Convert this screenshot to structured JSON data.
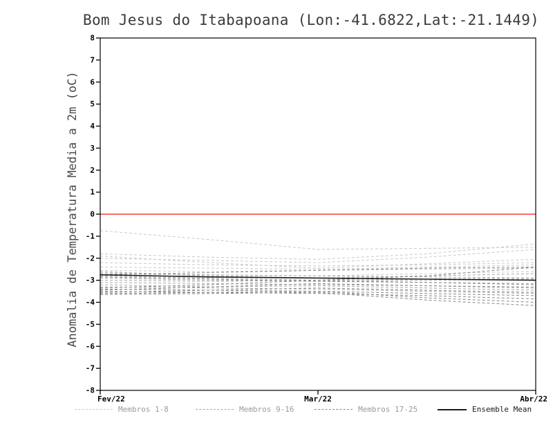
{
  "title": "Bom Jesus do Itabapoana (Lon:-41.6822,Lat:-21.1449)",
  "ylabel": "Anomalia de Temperatura Media a 2m (oC)",
  "legend": [
    {
      "label": "Membros 1-8",
      "color": "#c9c9c9",
      "style": "dashed",
      "label_color": "#9a9a9a"
    },
    {
      "label": "Membros 9-16",
      "color": "#a6a6a6",
      "style": "dashed",
      "label_color": "#9a9a9a"
    },
    {
      "label": "Membros 17-25",
      "color": "#878787",
      "style": "dashed",
      "label_color": "#9a9a9a"
    },
    {
      "label": "Ensemble Mean",
      "color": "#1a1a1a",
      "style": "solid",
      "label_color": "#1a1a1a"
    }
  ],
  "chart_data": {
    "type": "line",
    "title": "Bom Jesus do Itabapoana (Lon:-41.6822,Lat:-21.1449)",
    "xlabel": "",
    "ylabel": "Anomalia de Temperatura Media a 2m (oC)",
    "x_ticks": [
      "Fev/22",
      "Mar/22",
      "Abr/22"
    ],
    "y_ticks": [
      8,
      7,
      6,
      5,
      4,
      3,
      2,
      1,
      0,
      -1,
      -2,
      -3,
      -4,
      -5,
      -6,
      -7,
      -8
    ],
    "ylim": [
      -8,
      8
    ],
    "grid": false,
    "legend_position": "bottom",
    "zero_line": {
      "y": 0,
      "color": "#f04038"
    },
    "series_groups": [
      {
        "name": "Membros 1-8",
        "color": "#c9c9c9",
        "style": "dashed",
        "members": [
          [
            -0.75,
            -1.15,
            -1.6,
            -1.55,
            -1.5
          ],
          [
            -1.8,
            -1.95,
            -2.05,
            -1.8,
            -1.35
          ],
          [
            -2.0,
            -2.1,
            -2.2,
            -1.95,
            -1.6
          ],
          [
            -2.2,
            -2.3,
            -2.35,
            -2.3,
            -2.2
          ],
          [
            -2.4,
            -2.45,
            -2.5,
            -2.4,
            -2.3
          ],
          [
            -2.55,
            -2.6,
            -2.55,
            -2.5,
            -2.45
          ],
          [
            -2.65,
            -2.75,
            -2.8,
            -2.7,
            -2.6
          ],
          [
            -1.9,
            -2.2,
            -2.45,
            -2.25,
            -2.05
          ]
        ]
      },
      {
        "name": "Membros 9-16",
        "color": "#a6a6a6",
        "style": "dashed",
        "members": [
          [
            -2.7,
            -2.75,
            -2.8,
            -2.85,
            -2.9
          ],
          [
            -2.8,
            -2.9,
            -3.0,
            -2.95,
            -2.9
          ],
          [
            -2.9,
            -3.0,
            -3.05,
            -3.0,
            -2.95
          ],
          [
            -3.0,
            -3.05,
            -3.0,
            -3.1,
            -3.15
          ],
          [
            -3.1,
            -3.15,
            -3.2,
            -3.25,
            -3.3
          ],
          [
            -3.2,
            -3.3,
            -3.25,
            -3.35,
            -3.45
          ],
          [
            -3.3,
            -3.35,
            -3.4,
            -3.5,
            -3.6
          ],
          [
            -2.6,
            -2.8,
            -2.9,
            -2.8,
            -2.7
          ]
        ]
      },
      {
        "name": "Membros 17-25",
        "color": "#878787",
        "style": "dashed",
        "members": [
          [
            -3.4,
            -3.45,
            -3.5,
            -3.6,
            -3.7
          ],
          [
            -3.5,
            -3.55,
            -3.6,
            -3.7,
            -3.85
          ],
          [
            -3.6,
            -3.55,
            -3.5,
            -3.8,
            -4.0
          ],
          [
            -3.65,
            -3.6,
            -3.55,
            -3.9,
            -4.15
          ],
          [
            -3.45,
            -3.3,
            -3.15,
            -3.25,
            -3.35
          ],
          [
            -2.75,
            -2.65,
            -2.55,
            -2.45,
            -2.4
          ],
          [
            -3.35,
            -3.2,
            -3.0,
            -2.8,
            -2.4
          ],
          [
            -2.85,
            -2.95,
            -3.05,
            -3.1,
            -3.2
          ],
          [
            -3.55,
            -3.45,
            -3.35,
            -3.45,
            -3.55
          ]
        ]
      }
    ],
    "ensemble_mean": {
      "name": "Ensemble Mean",
      "color": "#1a1a1a",
      "style": "solid",
      "values": [
        -2.75,
        -2.85,
        -2.9,
        -2.95,
        -3.0
      ]
    }
  }
}
